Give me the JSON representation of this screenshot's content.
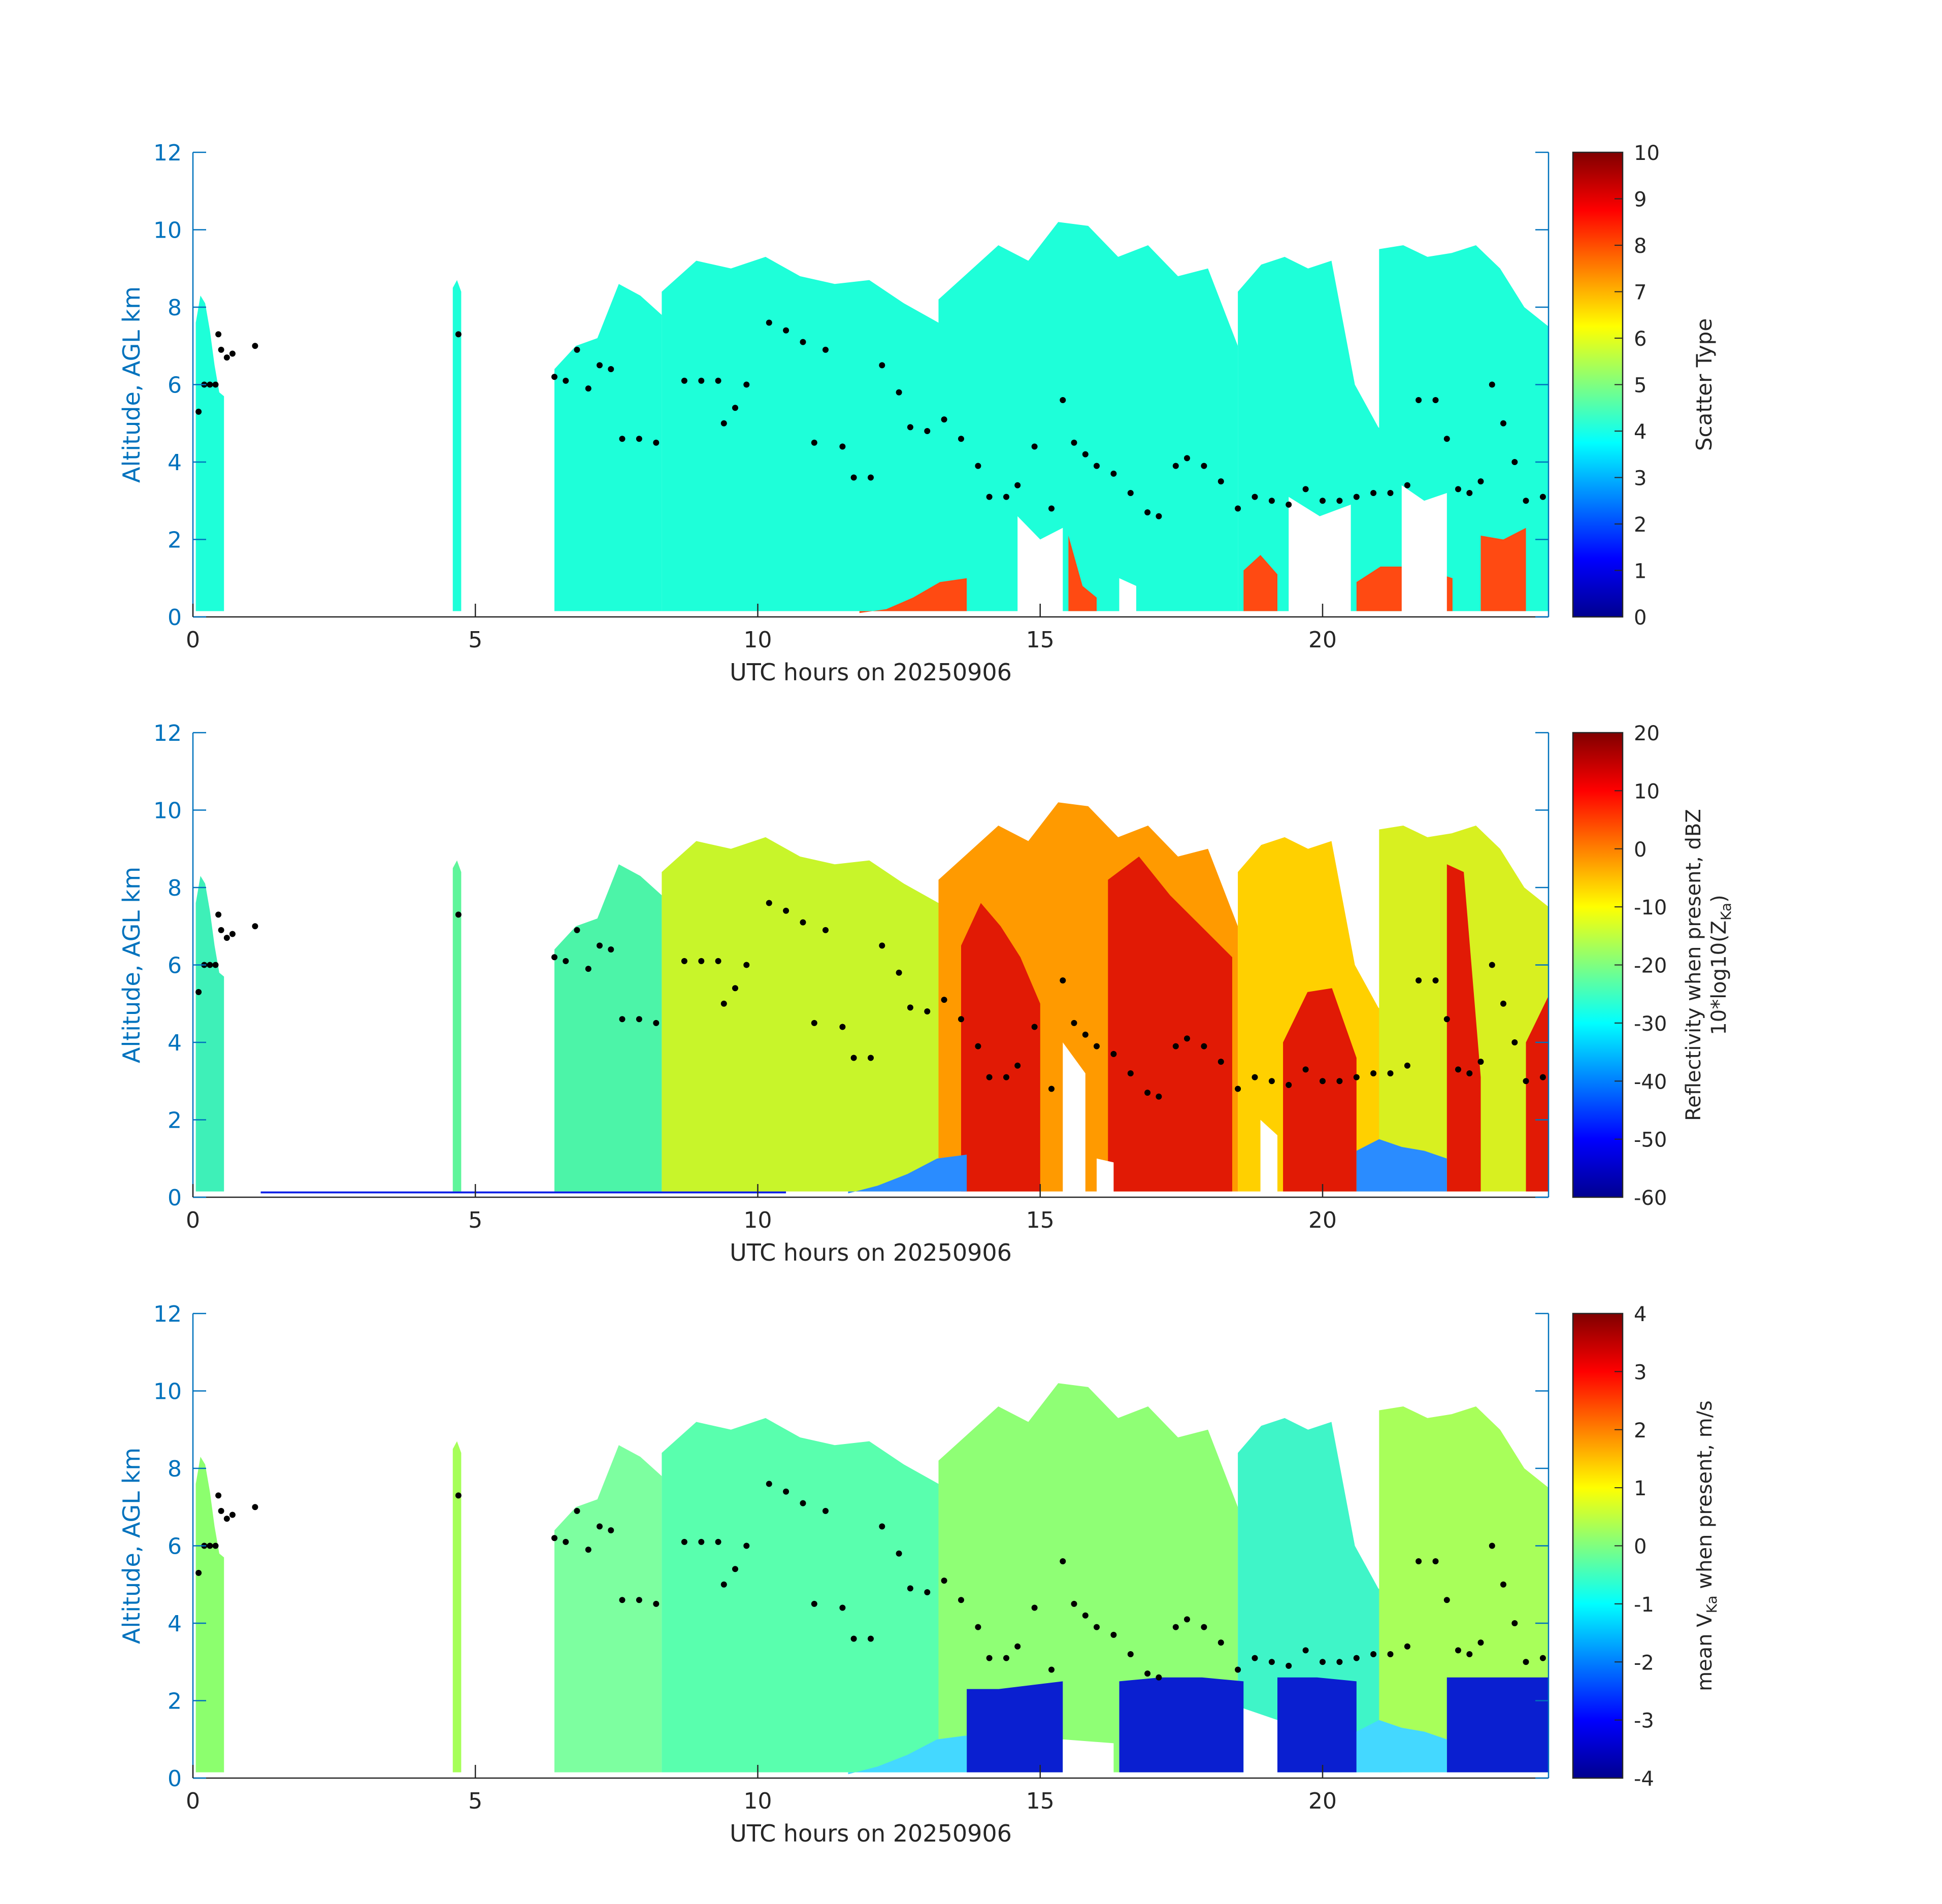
{
  "chart_data": [
    {
      "type": "heatmap",
      "panel": "scatter-type",
      "xlabel": "UTC hours on 20250906",
      "ylabel": "Altitude, AGL km",
      "xlim": [
        0,
        24
      ],
      "ylim": [
        0,
        12
      ],
      "xticks": [
        "0",
        "5",
        "10",
        "15",
        "20"
      ],
      "yticks": [
        "0",
        "2",
        "4",
        "6",
        "8",
        "10",
        "12"
      ],
      "colorbar": {
        "label": "Scatter Type",
        "range": [
          0,
          10
        ],
        "ticks": [
          "0",
          "1",
          "2",
          "3",
          "4",
          "5",
          "6",
          "7",
          "8",
          "9",
          "10"
        ]
      },
      "regions": [
        {
          "color": "#1effd9",
          "value": 3.5,
          "x": [
            0.05,
            0.55
          ],
          "top": [
            7.6,
            8.3,
            8.1,
            7.4,
            6.5,
            5.8,
            5.7
          ]
        },
        {
          "color": "#1effd9",
          "value": 3.5,
          "x": [
            4.6,
            4.75
          ],
          "top": [
            8.5,
            8.7,
            8.4
          ]
        },
        {
          "color": "#1effd9",
          "value": 3.5,
          "x": [
            6.4,
            8.3
          ],
          "top": [
            6.4,
            7.0,
            7.2,
            8.6,
            8.3,
            7.8
          ]
        },
        {
          "color": "#1effd9",
          "value": 3.5,
          "x": [
            8.3,
            13.2
          ],
          "top": [
            8.4,
            9.2,
            9.0,
            9.3,
            8.8,
            8.6,
            8.7,
            8.1,
            7.6
          ]
        },
        {
          "color": "#1effd9",
          "value": 3.5,
          "x": [
            13.2,
            18.5
          ],
          "top": [
            8.2,
            8.9,
            9.6,
            9.2,
            10.2,
            10.1,
            9.3,
            9.6,
            8.8,
            9.0,
            7.0
          ]
        },
        {
          "color": "#1effd9",
          "value": 3.5,
          "x": [
            18.5,
            21.4
          ],
          "top": [
            8.4,
            9.1,
            9.3,
            9.0,
            9.2,
            6.0,
            4.9,
            4.4
          ]
        },
        {
          "color": "#1effd9",
          "value": 3.5,
          "x": [
            21.0,
            24.0
          ],
          "top": [
            9.5,
            9.6,
            9.3,
            9.4,
            9.6,
            9.0,
            8.0,
            7.5
          ]
        },
        {
          "color": "#ff4a12",
          "value": 8.5,
          "x": [
            11.8,
            13.7
          ],
          "top": [
            0.1,
            0.2,
            0.5,
            0.9,
            1.0
          ]
        },
        {
          "color": "#ff4a12",
          "value": 8.5,
          "x": [
            15.5,
            16.0
          ],
          "top": [
            2.1,
            0.8,
            0.5
          ]
        },
        {
          "color": "#ff4a12",
          "value": 8.5,
          "x": [
            18.6,
            19.2
          ],
          "top": [
            1.2,
            1.6,
            1.1
          ]
        },
        {
          "color": "#ff4a12",
          "value": 8.5,
          "x": [
            20.6,
            22.3
          ],
          "top": [
            0.9,
            1.3,
            1.3,
            1.2,
            1.0
          ]
        },
        {
          "color": "#ff4a12",
          "value": 8.5,
          "x": [
            22.8,
            23.6
          ],
          "top": [
            2.1,
            2.0,
            2.3
          ]
        }
      ],
      "gaps": [
        {
          "x": [
            14.6,
            15.4
          ],
          "top": [
            2.6,
            2.0,
            2.3
          ]
        },
        {
          "x": [
            16.4,
            16.7
          ],
          "top": [
            1.0,
            0.8
          ]
        },
        {
          "x": [
            19.4,
            20.5
          ],
          "top": [
            3.1,
            2.6,
            2.9
          ]
        },
        {
          "x": [
            21.4,
            22.2
          ],
          "top": [
            3.4,
            3.0,
            3.2
          ]
        }
      ],
      "overlay_points": [
        [
          0.1,
          5.3
        ],
        [
          0.2,
          6.0
        ],
        [
          0.3,
          6.0
        ],
        [
          0.4,
          6.0
        ],
        [
          0.45,
          7.3
        ],
        [
          0.5,
          6.9
        ],
        [
          0.6,
          6.7
        ],
        [
          0.7,
          6.8
        ],
        [
          1.1,
          7.0
        ],
        [
          4.7,
          7.3
        ],
        [
          6.4,
          6.2
        ],
        [
          6.6,
          6.1
        ],
        [
          6.8,
          6.9
        ],
        [
          7.0,
          5.9
        ],
        [
          7.2,
          6.5
        ],
        [
          7.4,
          6.4
        ],
        [
          7.6,
          4.6
        ],
        [
          7.9,
          4.6
        ],
        [
          8.2,
          4.5
        ],
        [
          8.7,
          6.1
        ],
        [
          9.0,
          6.1
        ],
        [
          9.3,
          6.1
        ],
        [
          9.4,
          5.0
        ],
        [
          9.6,
          5.4
        ],
        [
          9.8,
          6.0
        ],
        [
          10.2,
          7.6
        ],
        [
          10.5,
          7.4
        ],
        [
          10.8,
          7.1
        ],
        [
          11.0,
          4.5
        ],
        [
          11.2,
          6.9
        ],
        [
          11.5,
          4.4
        ],
        [
          11.7,
          3.6
        ],
        [
          12.0,
          3.6
        ],
        [
          12.2,
          6.5
        ],
        [
          12.5,
          5.8
        ],
        [
          12.7,
          4.9
        ],
        [
          13.0,
          4.8
        ],
        [
          13.3,
          5.1
        ],
        [
          13.6,
          4.6
        ],
        [
          13.9,
          3.9
        ],
        [
          14.1,
          3.1
        ],
        [
          14.4,
          3.1
        ],
        [
          14.6,
          3.4
        ],
        [
          14.9,
          4.4
        ],
        [
          15.2,
          2.8
        ],
        [
          15.4,
          5.6
        ],
        [
          15.6,
          4.5
        ],
        [
          15.8,
          4.2
        ],
        [
          16.0,
          3.9
        ],
        [
          16.3,
          3.7
        ],
        [
          16.6,
          3.2
        ],
        [
          16.9,
          2.7
        ],
        [
          17.1,
          2.6
        ],
        [
          17.4,
          3.9
        ],
        [
          17.6,
          4.1
        ],
        [
          17.9,
          3.9
        ],
        [
          18.2,
          3.5
        ],
        [
          18.5,
          2.8
        ],
        [
          18.8,
          3.1
        ],
        [
          19.1,
          3.0
        ],
        [
          19.4,
          2.9
        ],
        [
          19.7,
          3.3
        ],
        [
          20.0,
          3.0
        ],
        [
          20.3,
          3.0
        ],
        [
          20.6,
          3.1
        ],
        [
          20.9,
          3.2
        ],
        [
          21.2,
          3.2
        ],
        [
          21.5,
          3.4
        ],
        [
          21.7,
          5.6
        ],
        [
          22.0,
          5.6
        ],
        [
          22.2,
          4.6
        ],
        [
          22.4,
          3.3
        ],
        [
          22.6,
          3.2
        ],
        [
          22.8,
          3.5
        ],
        [
          23.0,
          6.0
        ],
        [
          23.2,
          5.0
        ],
        [
          23.4,
          4.0
        ],
        [
          23.6,
          3.0
        ],
        [
          23.9,
          3.1
        ]
      ]
    },
    {
      "type": "heatmap",
      "panel": "reflectivity",
      "xlabel": "UTC hours on 20250906",
      "ylabel": "Altitude, AGL km",
      "xlim": [
        0,
        24
      ],
      "ylim": [
        0,
        12
      ],
      "xticks": [
        "0",
        "5",
        "10",
        "15",
        "20"
      ],
      "yticks": [
        "0",
        "2",
        "4",
        "6",
        "8",
        "10",
        "12"
      ],
      "colorbar": {
        "label": "Reflectivity when present, dBZ",
        "label2_prefix": "10*log10(Z",
        "label2_sub": "Ka",
        "label2_suffix": ")",
        "range": [
          -60,
          20
        ],
        "ticks": [
          "-60",
          "-50",
          "-40",
          "-30",
          "-20",
          "-10",
          "0",
          "10",
          "20"
        ]
      },
      "regions": [
        {
          "color": "#3ef0b8",
          "value": -27,
          "x": [
            0.05,
            0.55
          ],
          "top": [
            7.6,
            8.3,
            8.1,
            7.4,
            6.5,
            5.8,
            5.7
          ]
        },
        {
          "color": "#5ef59a",
          "value": -24,
          "x": [
            4.6,
            4.75
          ],
          "top": [
            8.5,
            8.7,
            8.4
          ]
        },
        {
          "color": "#4cf4a8",
          "value": -25,
          "x": [
            6.4,
            8.3
          ],
          "top": [
            6.4,
            7.0,
            7.2,
            8.6,
            8.3,
            7.8
          ]
        },
        {
          "color": "#c8f52a",
          "value": -15,
          "x": [
            8.3,
            13.2
          ],
          "top": [
            8.4,
            9.2,
            9.0,
            9.3,
            8.8,
            8.6,
            8.7,
            8.1,
            7.6
          ]
        },
        {
          "color": "#ff9a00",
          "value": -2,
          "x": [
            13.2,
            18.5
          ],
          "top": [
            8.2,
            8.9,
            9.6,
            9.2,
            10.2,
            10.1,
            9.3,
            9.6,
            8.8,
            9.0,
            7.0
          ]
        },
        {
          "color": "#ffd000",
          "value": -8,
          "x": [
            18.5,
            21.4
          ],
          "top": [
            8.4,
            9.1,
            9.3,
            9.0,
            9.2,
            6.0,
            4.9,
            4.4
          ]
        },
        {
          "color": "#d8f020",
          "value": -13,
          "x": [
            21.0,
            24.0
          ],
          "top": [
            9.5,
            9.6,
            9.3,
            9.4,
            9.6,
            9.0,
            8.0,
            7.5
          ]
        },
        {
          "color": "#e11a05",
          "value": 10,
          "x": [
            13.6,
            15.0
          ],
          "top": [
            6.5,
            7.6,
            7.0,
            6.2,
            5.0
          ]
        },
        {
          "color": "#e11a05",
          "value": 10,
          "x": [
            16.2,
            18.4
          ],
          "top": [
            8.2,
            8.8,
            7.8,
            7.0,
            6.2
          ]
        },
        {
          "color": "#e11a05",
          "value": 10,
          "x": [
            19.3,
            20.6
          ],
          "top": [
            4.0,
            5.3,
            5.4,
            3.6
          ]
        },
        {
          "color": "#e11a05",
          "value": 10,
          "x": [
            22.2,
            22.8
          ],
          "top": [
            8.6,
            8.4,
            3.1
          ]
        },
        {
          "color": "#e11a05",
          "value": 10,
          "x": [
            23.6,
            24.0
          ],
          "top": [
            4.0,
            5.2
          ]
        },
        {
          "color": "#2a8cff",
          "value": -45,
          "x": [
            11.6,
            13.7
          ],
          "top": [
            0.1,
            0.3,
            0.6,
            1.0,
            1.1
          ]
        },
        {
          "color": "#2a8cff",
          "value": -45,
          "x": [
            20.6,
            22.2
          ],
          "top": [
            1.2,
            1.5,
            1.3,
            1.2,
            1.0
          ]
        },
        {
          "color": "#0a1fe6",
          "value": -55,
          "x": [
            1.2,
            10.5
          ],
          "top": [
            0.1,
            0.1
          ]
        }
      ],
      "gaps": [
        {
          "x": [
            15.4,
            15.8
          ],
          "top": [
            4.0,
            3.2
          ]
        },
        {
          "x": [
            16.0,
            16.3
          ],
          "top": [
            1.0,
            0.9
          ]
        },
        {
          "x": [
            18.9,
            19.2
          ],
          "top": [
            2.0,
            1.6
          ]
        }
      ],
      "overlay_points": "same-as-panel-1"
    },
    {
      "type": "heatmap",
      "panel": "doppler-velocity",
      "xlabel": "UTC hours on 20250906",
      "ylabel": "Altitude, AGL km",
      "xlim": [
        0,
        24
      ],
      "ylim": [
        0,
        12
      ],
      "xticks": [
        "0",
        "5",
        "10",
        "15",
        "20"
      ],
      "yticks": [
        "0",
        "2",
        "4",
        "6",
        "8",
        "10",
        "12"
      ],
      "colorbar": {
        "label_prefix": "mean V",
        "label_sub": "Ka",
        "label_suffix": " when present, m/s",
        "range": [
          -4,
          4
        ],
        "ticks": [
          "-4",
          "-3",
          "-2",
          "-1",
          "0",
          "1",
          "2",
          "3",
          "4"
        ]
      },
      "regions": [
        {
          "color": "#8cff6e",
          "value": 0.2,
          "x": [
            0.05,
            0.55
          ],
          "top": [
            7.6,
            8.3,
            8.1,
            7.4,
            6.5,
            5.8,
            5.7
          ]
        },
        {
          "color": "#a6ff58",
          "value": 0.4,
          "x": [
            4.6,
            4.75
          ],
          "top": [
            8.5,
            8.7,
            8.4
          ]
        },
        {
          "color": "#7dffa0",
          "value": 0.0,
          "x": [
            6.4,
            8.3
          ],
          "top": [
            6.4,
            7.0,
            7.2,
            8.6,
            8.3,
            7.8
          ]
        },
        {
          "color": "#59ffae",
          "value": -0.3,
          "x": [
            8.3,
            13.2
          ],
          "top": [
            8.4,
            9.2,
            9.0,
            9.3,
            8.8,
            8.6,
            8.7,
            8.1,
            7.6
          ]
        },
        {
          "color": "#8fff75",
          "value": 0.2,
          "x": [
            13.2,
            18.5
          ],
          "top": [
            8.2,
            8.9,
            9.6,
            9.2,
            10.2,
            10.1,
            9.3,
            9.6,
            8.8,
            9.0,
            7.0
          ]
        },
        {
          "color": "#3ff5c8",
          "value": -0.6,
          "x": [
            18.5,
            21.4
          ],
          "top": [
            8.4,
            9.1,
            9.3,
            9.0,
            9.2,
            6.0,
            4.9,
            4.4
          ]
        },
        {
          "color": "#a8ff5a",
          "value": 0.4,
          "x": [
            21.0,
            24.0
          ],
          "top": [
            9.5,
            9.6,
            9.3,
            9.4,
            9.6,
            9.0,
            8.0,
            7.5
          ]
        },
        {
          "color": "#0a1fd0",
          "value": -3.6,
          "x": [
            13.7,
            15.4
          ],
          "top": [
            2.3,
            2.3,
            2.4,
            2.5
          ]
        },
        {
          "color": "#0a1fd0",
          "value": -3.6,
          "x": [
            16.4,
            18.6
          ],
          "top": [
            2.5,
            2.6,
            2.6,
            2.5
          ]
        },
        {
          "color": "#0a1fd0",
          "value": -3.6,
          "x": [
            19.2,
            20.6
          ],
          "top": [
            2.6,
            2.6,
            2.5
          ]
        },
        {
          "color": "#0a1fd0",
          "value": -3.6,
          "x": [
            22.2,
            24.0
          ],
          "top": [
            2.6,
            2.6,
            2.6,
            2.6
          ]
        },
        {
          "color": "#44d8ff",
          "value": -1.3,
          "x": [
            11.6,
            13.7
          ],
          "top": [
            0.1,
            0.3,
            0.6,
            1.0,
            1.1
          ]
        },
        {
          "color": "#44d8ff",
          "value": -1.3,
          "x": [
            20.6,
            22.2
          ],
          "top": [
            1.2,
            1.5,
            1.3,
            1.2,
            1.0
          ]
        }
      ],
      "gaps": [
        {
          "x": [
            15.4,
            16.3
          ],
          "top": [
            1.0,
            0.9
          ]
        },
        {
          "x": [
            18.6,
            19.2
          ],
          "top": [
            1.8,
            1.5
          ]
        }
      ],
      "overlay_points": "same-as-panel-1"
    }
  ]
}
